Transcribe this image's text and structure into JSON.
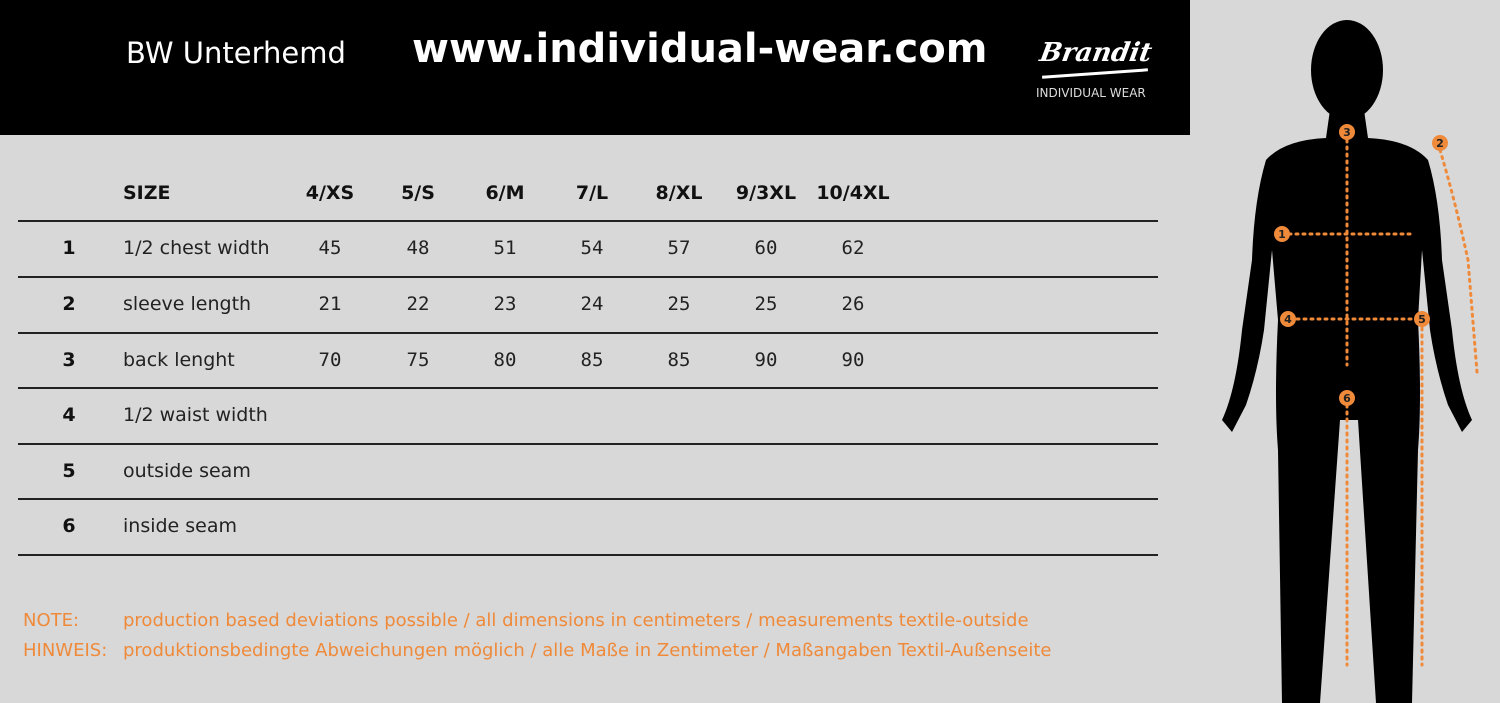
{
  "header": {
    "title": "BW Unterhemd",
    "url": "www.individual-wear.com",
    "logo": {
      "script": "Brandit",
      "subtitle": "INDIVIDUAL WEAR"
    }
  },
  "table": {
    "size_label": "SIZE",
    "sizes": [
      "4/XS",
      "5/S",
      "6/M",
      "7/L",
      "8/XL",
      "9/3XL",
      "10/4XL"
    ],
    "rows": [
      {
        "num": "1",
        "label": "1/2 chest width",
        "values": [
          "45",
          "48",
          "51",
          "54",
          "57",
          "60",
          "62"
        ]
      },
      {
        "num": "2",
        "label": "sleeve length",
        "values": [
          "21",
          "22",
          "23",
          "24",
          "25",
          "25",
          "26"
        ]
      },
      {
        "num": "3",
        "label": "back lenght",
        "values": [
          "70",
          "75",
          "80",
          "85",
          "85",
          "90",
          "90"
        ]
      },
      {
        "num": "4",
        "label": "1/2 waist width",
        "values": []
      },
      {
        "num": "5",
        "label": "outside seam",
        "values": []
      },
      {
        "num": "6",
        "label": "inside seam",
        "values": []
      }
    ]
  },
  "notes": [
    {
      "key": "NOTE:",
      "text": "production based deviations possible / all dimensions in centimeters / measurements textile-outside"
    },
    {
      "key": "HINWEIS:",
      "text": "produktionsbedingte Abweichungen möglich / alle Maße in Zentimeter / Maßangaben Textil-Außenseite"
    }
  ],
  "figure": {
    "markers": [
      "1",
      "2",
      "3",
      "4",
      "5",
      "6"
    ]
  },
  "colors": {
    "accent": "#ef8a3a",
    "header_bg": "#000000",
    "background": "#d8d8d8"
  }
}
